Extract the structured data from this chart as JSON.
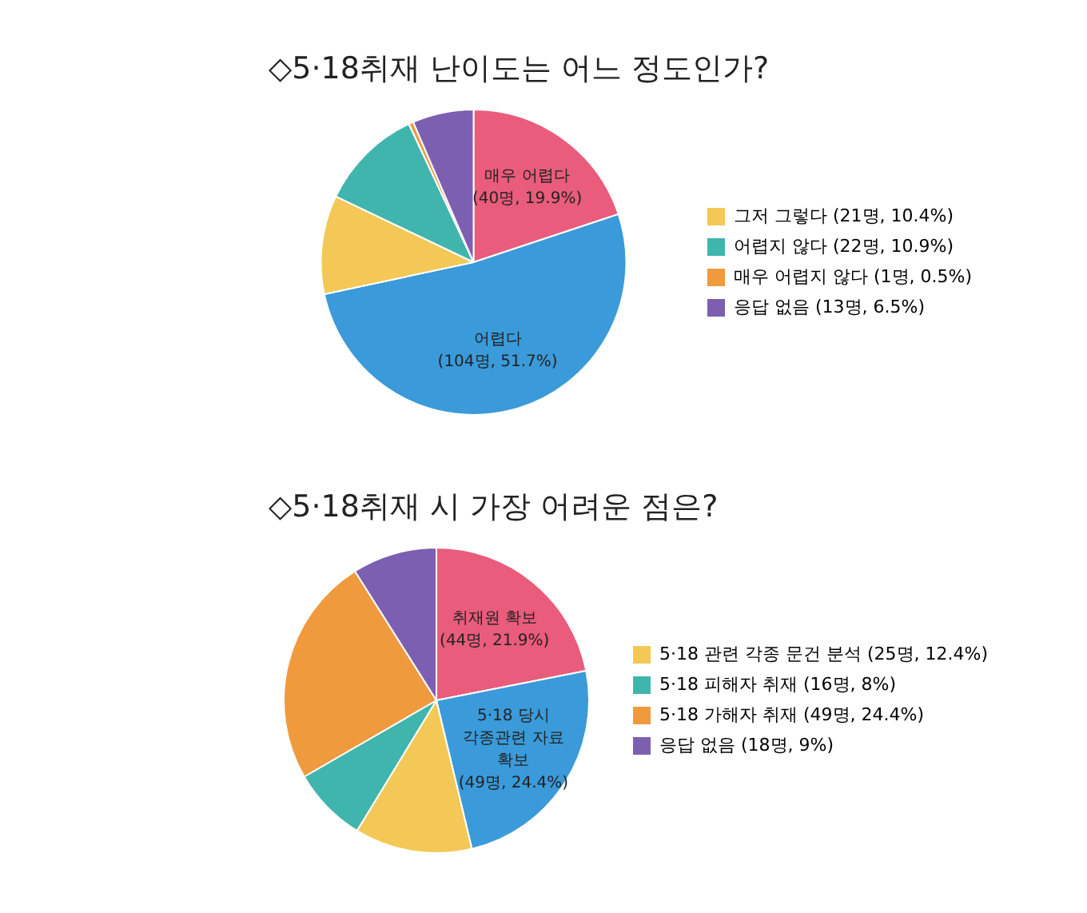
{
  "chart_data": [
    {
      "type": "pie",
      "title": "◇5·18취재 난이도는 어느 정도인가?",
      "categories": [
        "매우 어렵다",
        "어렵다",
        "그저 그렇다",
        "어렵지 않다",
        "매우 어렵지 않다",
        "응답 없음"
      ],
      "values": [
        40,
        104,
        21,
        22,
        1,
        13
      ],
      "value_labels": [
        "(40명, 19.9%)",
        "(104명, 51.7%)",
        "(21명, 10.4%)",
        "(22명, 10.9%)",
        "(1명, 0.5%)",
        "(13명, 6.5%)"
      ],
      "colors": [
        "#e95c7b",
        "#3b9ad9",
        "#f4c856",
        "#40b5ad",
        "#f09a3e",
        "#7d5fb2"
      ],
      "legend": "right"
    },
    {
      "type": "pie",
      "title": "◇5·18취재 시 가장 어려운 점은?",
      "categories": [
        "취재원 확보",
        "5·18 당시 각종관련 자료 확보",
        "5·18 관련 각종 문건 분석",
        "5·18 피해자 취재",
        "5·18 가해자 취재",
        "응답 없음"
      ],
      "values": [
        44,
        49,
        25,
        16,
        49,
        18
      ],
      "value_labels": [
        "(44명, 21.9%)",
        "(49명, 24.4%)",
        "(25명, 12.4%)",
        "(16명, 8%)",
        "(49명, 24.4%)",
        "(18명, 9%)"
      ],
      "colors": [
        "#e95c7b",
        "#3b9ad9",
        "#f4c856",
        "#40b5ad",
        "#f09a3e",
        "#7d5fb2"
      ],
      "legend": "right"
    }
  ]
}
